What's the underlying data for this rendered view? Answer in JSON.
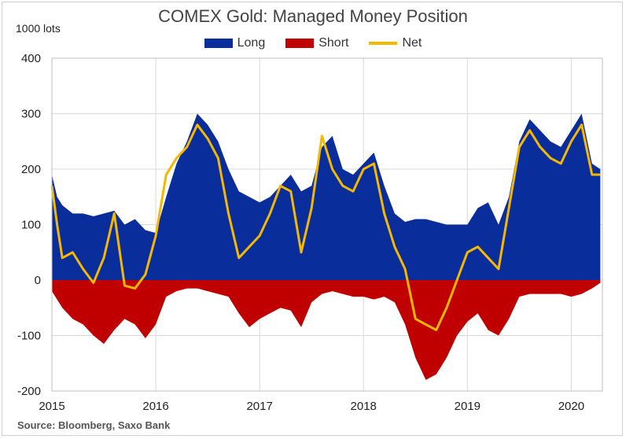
{
  "chart_data": {
    "type": "area",
    "title": "COMEX Gold: Managed Money Position",
    "ylabel": "1000 lots",
    "source": "Source: Bloomberg, Saxo Bank",
    "ylim": [
      -200,
      400
    ],
    "yticks": [
      400,
      300,
      200,
      100,
      0,
      -100,
      -200
    ],
    "xlim": [
      2015,
      2020.3
    ],
    "xticks": [
      2015,
      2016,
      2017,
      2018,
      2019,
      2020
    ],
    "xtick_labels": [
      "2015",
      "2016",
      "2017",
      "2018",
      "2019",
      "2020"
    ],
    "grid": "vertical at year boundaries, horizontal at y ticks",
    "legend_position": "top-center",
    "series": [
      {
        "name": "Long",
        "color": "#0a2d9c",
        "kind": "area",
        "x": [
          2015.0,
          2015.05,
          2015.1,
          2015.2,
          2015.3,
          2015.4,
          2015.5,
          2015.6,
          2015.7,
          2015.8,
          2015.9,
          2016.0,
          2016.1,
          2016.2,
          2016.3,
          2016.4,
          2016.5,
          2016.6,
          2016.7,
          2016.8,
          2016.9,
          2017.0,
          2017.1,
          2017.2,
          2017.3,
          2017.4,
          2017.5,
          2017.6,
          2017.7,
          2017.8,
          2017.9,
          2018.0,
          2018.1,
          2018.2,
          2018.3,
          2018.4,
          2018.5,
          2018.6,
          2018.7,
          2018.8,
          2018.9,
          2019.0,
          2019.1,
          2019.2,
          2019.3,
          2019.4,
          2019.5,
          2019.6,
          2019.7,
          2019.8,
          2019.9,
          2020.0,
          2020.1,
          2020.2,
          2020.28
        ],
        "values": [
          190,
          150,
          135,
          120,
          120,
          115,
          120,
          125,
          100,
          110,
          90,
          85,
          150,
          210,
          250,
          300,
          280,
          250,
          200,
          160,
          150,
          140,
          150,
          170,
          190,
          160,
          170,
          240,
          260,
          200,
          190,
          210,
          230,
          170,
          120,
          105,
          110,
          110,
          105,
          100,
          100,
          100,
          130,
          140,
          100,
          150,
          250,
          290,
          270,
          250,
          240,
          270,
          300,
          210,
          200
        ]
      },
      {
        "name": "Short",
        "color": "#c00000",
        "kind": "area",
        "x": [
          2015.0,
          2015.1,
          2015.2,
          2015.3,
          2015.4,
          2015.5,
          2015.6,
          2015.7,
          2015.8,
          2015.9,
          2016.0,
          2016.1,
          2016.2,
          2016.3,
          2016.4,
          2016.5,
          2016.6,
          2016.7,
          2016.8,
          2016.9,
          2017.0,
          2017.1,
          2017.2,
          2017.3,
          2017.4,
          2017.5,
          2017.6,
          2017.7,
          2017.8,
          2017.9,
          2018.0,
          2018.1,
          2018.2,
          2018.3,
          2018.4,
          2018.5,
          2018.6,
          2018.7,
          2018.8,
          2018.9,
          2019.0,
          2019.1,
          2019.2,
          2019.3,
          2019.4,
          2019.5,
          2019.6,
          2019.7,
          2019.8,
          2019.9,
          2020.0,
          2020.1,
          2020.2,
          2020.28
        ],
        "values": [
          -20,
          -50,
          -70,
          -80,
          -100,
          -115,
          -90,
          -70,
          -80,
          -105,
          -80,
          -30,
          -20,
          -15,
          -15,
          -20,
          -25,
          -30,
          -60,
          -85,
          -70,
          -60,
          -50,
          -55,
          -85,
          -40,
          -25,
          -20,
          -25,
          -30,
          -30,
          -35,
          -30,
          -40,
          -80,
          -140,
          -180,
          -170,
          -140,
          -100,
          -75,
          -60,
          -90,
          -100,
          -70,
          -30,
          -25,
          -25,
          -25,
          -25,
          -30,
          -25,
          -15,
          -5
        ]
      },
      {
        "name": "Net",
        "color": "#f5b800",
        "kind": "line",
        "x": [
          2015.0,
          2015.05,
          2015.1,
          2015.2,
          2015.3,
          2015.4,
          2015.5,
          2015.6,
          2015.7,
          2015.8,
          2015.9,
          2016.0,
          2016.1,
          2016.2,
          2016.3,
          2016.4,
          2016.5,
          2016.6,
          2016.7,
          2016.8,
          2016.9,
          2017.0,
          2017.1,
          2017.2,
          2017.3,
          2017.4,
          2017.5,
          2017.6,
          2017.7,
          2017.8,
          2017.9,
          2018.0,
          2018.1,
          2018.2,
          2018.3,
          2018.4,
          2018.5,
          2018.6,
          2018.7,
          2018.8,
          2018.9,
          2019.0,
          2019.1,
          2019.2,
          2019.3,
          2019.4,
          2019.5,
          2019.6,
          2019.7,
          2019.8,
          2019.9,
          2020.0,
          2020.1,
          2020.2,
          2020.28
        ],
        "values": [
          170,
          100,
          40,
          50,
          20,
          -5,
          40,
          120,
          -10,
          -15,
          10,
          80,
          190,
          220,
          240,
          280,
          255,
          220,
          120,
          40,
          60,
          80,
          120,
          170,
          160,
          50,
          130,
          260,
          200,
          170,
          160,
          200,
          210,
          120,
          60,
          20,
          -70,
          -80,
          -90,
          -50,
          0,
          50,
          60,
          40,
          20,
          130,
          240,
          270,
          240,
          220,
          210,
          250,
          280,
          190,
          190
        ]
      }
    ]
  }
}
